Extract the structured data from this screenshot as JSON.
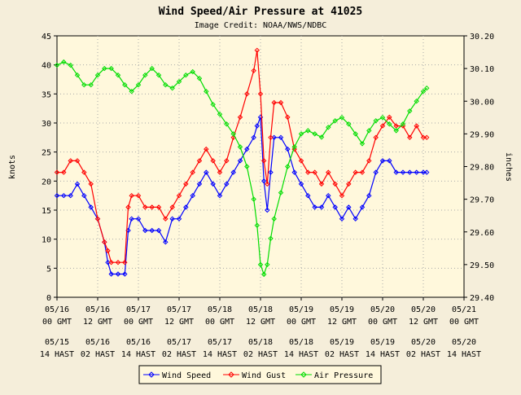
{
  "chart_data": {
    "type": "line",
    "title": "Wind Speed/Air Pressure at 41025",
    "subtitle": "Image Credit: NOAA/NWS/NDBC",
    "ylabel_left": "knots",
    "ylabel_right": "inches",
    "ylim_left": [
      0,
      45
    ],
    "yticks_left": [
      "0",
      "5",
      "10",
      "15",
      "20",
      "25",
      "30",
      "35",
      "40",
      "45"
    ],
    "ylim_right": [
      29.4,
      30.2
    ],
    "yticks_right": [
      "29.40",
      "29.50",
      "29.60",
      "29.70",
      "29.80",
      "29.90",
      "30.00",
      "30.10",
      "30.20"
    ],
    "xlim_hours": [
      0,
      120
    ],
    "xticks": [
      {
        "date": "05/16",
        "gmt": "00 GMT",
        "local_date": "05/15",
        "local": "14 HAST"
      },
      {
        "date": "05/16",
        "gmt": "12 GMT",
        "local_date": "05/16",
        "local": "02 HAST"
      },
      {
        "date": "05/17",
        "gmt": "00 GMT",
        "local_date": "05/16",
        "local": "14 HAST"
      },
      {
        "date": "05/17",
        "gmt": "12 GMT",
        "local_date": "05/17",
        "local": "02 HAST"
      },
      {
        "date": "05/18",
        "gmt": "00 GMT",
        "local_date": "05/17",
        "local": "14 HAST"
      },
      {
        "date": "05/18",
        "gmt": "12 GMT",
        "local_date": "05/18",
        "local": "02 HAST"
      },
      {
        "date": "05/19",
        "gmt": "00 GMT",
        "local_date": "05/18",
        "local": "14 HAST"
      },
      {
        "date": "05/19",
        "gmt": "12 GMT",
        "local_date": "05/19",
        "local": "02 HAST"
      },
      {
        "date": "05/20",
        "gmt": "00 GMT",
        "local_date": "05/19",
        "local": "14 HAST"
      },
      {
        "date": "05/20",
        "gmt": "12 GMT",
        "local_date": "05/20",
        "local": "02 HAST"
      },
      {
        "date": "05/21",
        "gmt": "00 GMT",
        "local_date": "05/20",
        "local": "14 HAST"
      }
    ],
    "grid": true,
    "legend_position": "bottom",
    "series": [
      {
        "name": "Wind Speed",
        "axis": "left",
        "color": "#0000ff",
        "marker": "diamond",
        "points": [
          [
            0,
            17.5
          ],
          [
            2,
            17.5
          ],
          [
            4,
            17.5
          ],
          [
            6,
            19.5
          ],
          [
            8,
            17.5
          ],
          [
            10,
            15.5
          ],
          [
            12,
            13.5
          ],
          [
            14,
            9.5
          ],
          [
            15,
            6
          ],
          [
            16,
            4
          ],
          [
            18,
            4
          ],
          [
            20,
            4
          ],
          [
            21,
            11.5
          ],
          [
            22,
            13.5
          ],
          [
            24,
            13.5
          ],
          [
            26,
            11.5
          ],
          [
            28,
            11.5
          ],
          [
            30,
            11.5
          ],
          [
            32,
            9.5
          ],
          [
            34,
            13.5
          ],
          [
            36,
            13.5
          ],
          [
            38,
            15.5
          ],
          [
            40,
            17.5
          ],
          [
            42,
            19.5
          ],
          [
            44,
            21.5
          ],
          [
            46,
            19.5
          ],
          [
            48,
            17.5
          ],
          [
            50,
            19.5
          ],
          [
            52,
            21.5
          ],
          [
            54,
            23.5
          ],
          [
            56,
            25.5
          ],
          [
            58,
            27.5
          ],
          [
            59,
            29.5
          ],
          [
            60,
            31
          ],
          [
            61,
            20
          ],
          [
            62,
            15
          ],
          [
            63,
            21.5
          ],
          [
            64,
            27.5
          ],
          [
            66,
            27.5
          ],
          [
            68,
            25.5
          ],
          [
            70,
            21.5
          ],
          [
            72,
            19.5
          ],
          [
            74,
            17.5
          ],
          [
            76,
            15.5
          ],
          [
            78,
            15.5
          ],
          [
            80,
            17.5
          ],
          [
            82,
            15.5
          ],
          [
            84,
            13.5
          ],
          [
            86,
            15.5
          ],
          [
            88,
            13.5
          ],
          [
            90,
            15.5
          ],
          [
            92,
            17.5
          ],
          [
            94,
            21.5
          ],
          [
            96,
            23.5
          ],
          [
            98,
            23.5
          ],
          [
            100,
            21.5
          ],
          [
            102,
            21.5
          ],
          [
            104,
            21.5
          ],
          [
            106,
            21.5
          ],
          [
            108,
            21.5
          ],
          [
            109,
            21.5
          ]
        ]
      },
      {
        "name": "Wind Gust",
        "axis": "left",
        "color": "#ff0000",
        "marker": "diamond",
        "points": [
          [
            0,
            21.5
          ],
          [
            2,
            21.5
          ],
          [
            4,
            23.5
          ],
          [
            6,
            23.5
          ],
          [
            8,
            21.5
          ],
          [
            10,
            19.5
          ],
          [
            12,
            13.5
          ],
          [
            14,
            9.5
          ],
          [
            15,
            8
          ],
          [
            16,
            6
          ],
          [
            18,
            6
          ],
          [
            20,
            6
          ],
          [
            21,
            15.5
          ],
          [
            22,
            17.5
          ],
          [
            24,
            17.5
          ],
          [
            26,
            15.5
          ],
          [
            28,
            15.5
          ],
          [
            30,
            15.5
          ],
          [
            32,
            13.5
          ],
          [
            34,
            15.5
          ],
          [
            36,
            17.5
          ],
          [
            38,
            19.5
          ],
          [
            40,
            21.5
          ],
          [
            42,
            23.5
          ],
          [
            44,
            25.5
          ],
          [
            46,
            23.5
          ],
          [
            48,
            21.5
          ],
          [
            50,
            23.5
          ],
          [
            52,
            27.5
          ],
          [
            54,
            31
          ],
          [
            56,
            35
          ],
          [
            58,
            39
          ],
          [
            59,
            42.5
          ],
          [
            60,
            35
          ],
          [
            61,
            23.5
          ],
          [
            62,
            19.5
          ],
          [
            63,
            27.5
          ],
          [
            64,
            33.5
          ],
          [
            66,
            33.5
          ],
          [
            68,
            31
          ],
          [
            70,
            25.5
          ],
          [
            72,
            23.5
          ],
          [
            74,
            21.5
          ],
          [
            76,
            21.5
          ],
          [
            78,
            19.5
          ],
          [
            80,
            21.5
          ],
          [
            82,
            19.5
          ],
          [
            84,
            17.5
          ],
          [
            86,
            19.5
          ],
          [
            88,
            21.5
          ],
          [
            90,
            21.5
          ],
          [
            92,
            23.5
          ],
          [
            94,
            27.5
          ],
          [
            96,
            29.5
          ],
          [
            98,
            31
          ],
          [
            100,
            29.5
          ],
          [
            102,
            29.5
          ],
          [
            104,
            27.5
          ],
          [
            106,
            29.5
          ],
          [
            108,
            27.5
          ],
          [
            109,
            27.5
          ]
        ]
      },
      {
        "name": "Air Pressure",
        "axis": "right",
        "color": "#00dd00",
        "marker": "diamond",
        "points": [
          [
            0,
            30.11
          ],
          [
            2,
            30.12
          ],
          [
            4,
            30.11
          ],
          [
            6,
            30.08
          ],
          [
            8,
            30.05
          ],
          [
            10,
            30.05
          ],
          [
            12,
            30.08
          ],
          [
            14,
            30.1
          ],
          [
            16,
            30.1
          ],
          [
            18,
            30.08
          ],
          [
            20,
            30.05
          ],
          [
            22,
            30.03
          ],
          [
            24,
            30.05
          ],
          [
            26,
            30.08
          ],
          [
            28,
            30.1
          ],
          [
            30,
            30.08
          ],
          [
            32,
            30.05
          ],
          [
            34,
            30.04
          ],
          [
            36,
            30.06
          ],
          [
            38,
            30.08
          ],
          [
            40,
            30.09
          ],
          [
            42,
            30.07
          ],
          [
            44,
            30.03
          ],
          [
            46,
            29.99
          ],
          [
            48,
            29.96
          ],
          [
            50,
            29.93
          ],
          [
            52,
            29.9
          ],
          [
            54,
            29.86
          ],
          [
            56,
            29.8
          ],
          [
            58,
            29.7
          ],
          [
            59,
            29.62
          ],
          [
            60,
            29.5
          ],
          [
            61,
            29.47
          ],
          [
            62,
            29.5
          ],
          [
            63,
            29.58
          ],
          [
            64,
            29.64
          ],
          [
            66,
            29.72
          ],
          [
            68,
            29.8
          ],
          [
            70,
            29.86
          ],
          [
            72,
            29.9
          ],
          [
            74,
            29.91
          ],
          [
            76,
            29.9
          ],
          [
            78,
            29.89
          ],
          [
            80,
            29.92
          ],
          [
            82,
            29.94
          ],
          [
            84,
            29.95
          ],
          [
            86,
            29.93
          ],
          [
            88,
            29.9
          ],
          [
            90,
            29.87
          ],
          [
            92,
            29.91
          ],
          [
            94,
            29.94
          ],
          [
            96,
            29.95
          ],
          [
            98,
            29.93
          ],
          [
            100,
            29.91
          ],
          [
            102,
            29.93
          ],
          [
            104,
            29.97
          ],
          [
            106,
            30.0
          ],
          [
            108,
            30.03
          ],
          [
            109,
            30.04
          ]
        ]
      }
    ]
  }
}
